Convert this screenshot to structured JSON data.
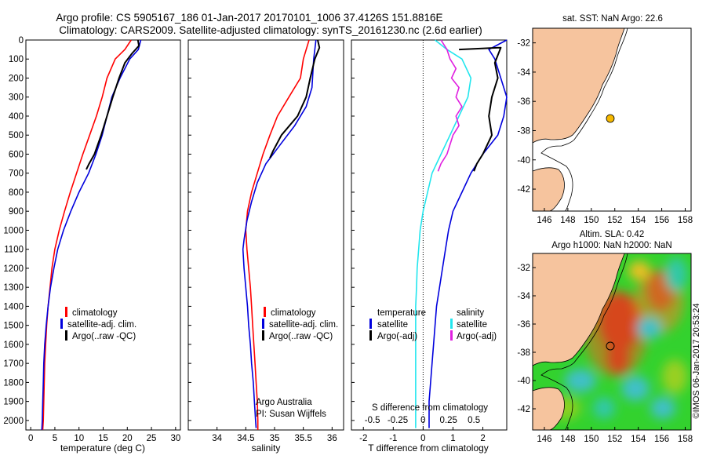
{
  "title": {
    "line1": "Argo profile: CS 5905167_186 01-Jan-2017 20170101_1006 37.4126S 151.8816E",
    "line2": "Climatology: CARS2009. Satellite-adjusted climatology: synTS_20161230.nc (2.6d earlier)"
  },
  "colors": {
    "climatology": "#ff0000",
    "satellite": "#0000dd",
    "argo": "#000000",
    "cyan": "#22e6ee",
    "magenta": "#e020e0",
    "land": "#f6c49e",
    "dot": "#f5b800"
  },
  "y_ticks": [
    "0",
    "100",
    "200",
    "300",
    "400",
    "500",
    "600",
    "700",
    "800",
    "900",
    "1000",
    "1100",
    "1200",
    "1300",
    "1400",
    "1500",
    "1600",
    "1700",
    "1800",
    "1900",
    "2000"
  ],
  "chart_data": [
    {
      "type": "line",
      "id": "temperature",
      "xlabel": "temperature (deg C)",
      "xlim": [
        -1,
        31
      ],
      "ylim": [
        2050,
        0
      ],
      "x_ticks": [
        0,
        5,
        10,
        15,
        20,
        25,
        30
      ],
      "x_tick_labels": [
        "0",
        "5",
        "10",
        "15",
        "20",
        "25",
        "30"
      ],
      "legend": [
        "climatology",
        "satellite-adj. clim.",
        "Argo(..raw -QC)"
      ],
      "series": [
        {
          "name": "climatology",
          "color": "#ff0000",
          "points": [
            [
              20.8,
              0
            ],
            [
              19.5,
              50
            ],
            [
              17.5,
              100
            ],
            [
              15.8,
              200
            ],
            [
              14.8,
              300
            ],
            [
              13.6,
              400
            ],
            [
              12.2,
              500
            ],
            [
              10.8,
              600
            ],
            [
              9.5,
              700
            ],
            [
              8.2,
              800
            ],
            [
              7.0,
              900
            ],
            [
              5.9,
              1000
            ],
            [
              5.0,
              1100
            ],
            [
              4.4,
              1200
            ],
            [
              4.0,
              1300
            ],
            [
              3.6,
              1400
            ],
            [
              3.3,
              1500
            ],
            [
              3.1,
              1600
            ],
            [
              2.9,
              1700
            ],
            [
              2.8,
              1800
            ],
            [
              2.7,
              1900
            ],
            [
              2.6,
              2000
            ],
            [
              2.5,
              2050
            ]
          ]
        },
        {
          "name": "satellite-adj. clim.",
          "color": "#0000dd",
          "points": [
            [
              22.8,
              0
            ],
            [
              22.3,
              50
            ],
            [
              20.5,
              100
            ],
            [
              18.5,
              200
            ],
            [
              16.8,
              300
            ],
            [
              15.8,
              400
            ],
            [
              14.8,
              500
            ],
            [
              13.5,
              600
            ],
            [
              12.0,
              700
            ],
            [
              10.0,
              800
            ],
            [
              8.3,
              900
            ],
            [
              6.8,
              1000
            ],
            [
              5.6,
              1100
            ],
            [
              4.8,
              1200
            ],
            [
              4.1,
              1300
            ],
            [
              3.6,
              1400
            ],
            [
              3.2,
              1500
            ],
            [
              2.9,
              1600
            ],
            [
              2.7,
              1700
            ],
            [
              2.6,
              1800
            ],
            [
              2.5,
              1900
            ],
            [
              2.4,
              2000
            ],
            [
              2.3,
              2050
            ]
          ]
        },
        {
          "name": "Argo(..raw -QC)",
          "color": "#000000",
          "points": [
            [
              22.2,
              0
            ],
            [
              22.4,
              30
            ],
            [
              21.0,
              70
            ],
            [
              19.5,
              120
            ],
            [
              18.3,
              200
            ],
            [
              17.0,
              300
            ],
            [
              15.8,
              400
            ],
            [
              14.6,
              500
            ],
            [
              13.2,
              600
            ],
            [
              12.1,
              650
            ],
            [
              11.5,
              680
            ]
          ]
        }
      ]
    },
    {
      "type": "line",
      "id": "salinity",
      "xlabel": "salinity",
      "xlim": [
        33.5,
        36.2
      ],
      "ylim": [
        2050,
        0
      ],
      "x_ticks": [
        34,
        34.5,
        35,
        35.5,
        36
      ],
      "x_tick_labels": [
        "34",
        "34.5",
        "35",
        "35.5",
        "36"
      ],
      "legend": [
        "climatology",
        "satellite-adj. clim.",
        "Argo(..raw -QC)"
      ],
      "annotations": [
        "Argo Australia",
        "PI: Susan Wijffels"
      ],
      "series": [
        {
          "name": "climatology",
          "color": "#ff0000",
          "points": [
            [
              35.6,
              0
            ],
            [
              35.5,
              100
            ],
            [
              35.45,
              200
            ],
            [
              35.25,
              300
            ],
            [
              35.05,
              400
            ],
            [
              34.92,
              500
            ],
            [
              34.8,
              600
            ],
            [
              34.7,
              700
            ],
            [
              34.6,
              800
            ],
            [
              34.53,
              900
            ],
            [
              34.5,
              1000
            ],
            [
              34.52,
              1100
            ],
            [
              34.55,
              1200
            ],
            [
              34.58,
              1300
            ],
            [
              34.6,
              1400
            ],
            [
              34.62,
              1500
            ],
            [
              34.64,
              1600
            ],
            [
              34.66,
              1700
            ],
            [
              34.68,
              1800
            ],
            [
              34.7,
              1900
            ],
            [
              34.71,
              2000
            ],
            [
              34.71,
              2050
            ]
          ]
        },
        {
          "name": "satellite-adj. clim.",
          "color": "#0000dd",
          "points": [
            [
              35.72,
              0
            ],
            [
              35.68,
              100
            ],
            [
              35.65,
              250
            ],
            [
              35.55,
              350
            ],
            [
              35.35,
              450
            ],
            [
              35.1,
              550
            ],
            [
              34.85,
              650
            ],
            [
              34.7,
              750
            ],
            [
              34.6,
              850
            ],
            [
              34.52,
              950
            ],
            [
              34.47,
              1050
            ],
            [
              34.45,
              1100
            ],
            [
              34.47,
              1200
            ],
            [
              34.5,
              1300
            ],
            [
              34.53,
              1400
            ],
            [
              34.55,
              1500
            ],
            [
              34.58,
              1600
            ],
            [
              34.6,
              1700
            ],
            [
              34.63,
              1800
            ],
            [
              34.65,
              1900
            ],
            [
              34.67,
              2000
            ],
            [
              34.68,
              2040
            ]
          ]
        },
        {
          "name": "Argo(..raw -QC)",
          "color": "#000000",
          "points": [
            [
              35.75,
              0
            ],
            [
              35.78,
              40
            ],
            [
              35.7,
              100
            ],
            [
              35.62,
              200
            ],
            [
              35.55,
              300
            ],
            [
              35.4,
              400
            ],
            [
              35.12,
              500
            ],
            [
              34.98,
              580
            ],
            [
              34.92,
              620
            ]
          ]
        }
      ]
    },
    {
      "type": "line",
      "id": "difference",
      "xlabel": "T difference from climatology",
      "xlabel2": "S difference from climatology",
      "xlim": [
        -2.4,
        2.8
      ],
      "ylim": [
        2050,
        0
      ],
      "x_ticks": [
        -2,
        -1,
        0,
        1,
        2
      ],
      "x_tick_labels": [
        "-2",
        "-1",
        "0",
        "1",
        "2"
      ],
      "s_ticks": [
        -0.5,
        -0.25,
        0,
        0.25,
        0.5
      ],
      "s_tick_labels": [
        "-0.5",
        "-0.25",
        "0",
        "0.25",
        "0.5"
      ],
      "legend_t": [
        "temperature",
        "satellite",
        "Argo(-adj)"
      ],
      "legend_s": [
        "salinity",
        "satellite",
        "Argo(-adj)"
      ],
      "series": [
        {
          "name": "satellite",
          "color": "#0000dd",
          "points": [
            [
              2.8,
              0
            ],
            [
              2.2,
              50
            ],
            [
              2.4,
              100
            ],
            [
              2.6,
              200
            ],
            [
              2.8,
              300
            ],
            [
              2.7,
              400
            ],
            [
              2.5,
              500
            ],
            [
              2.0,
              600
            ],
            [
              1.6,
              700
            ],
            [
              1.3,
              800
            ],
            [
              1.0,
              900
            ],
            [
              0.85,
              1000
            ],
            [
              0.75,
              1100
            ],
            [
              0.65,
              1200
            ],
            [
              0.55,
              1300
            ],
            [
              0.45,
              1400
            ],
            [
              0.4,
              1500
            ],
            [
              0.35,
              1600
            ],
            [
              0.3,
              1700
            ],
            [
              0.25,
              1800
            ],
            [
              0.2,
              1900
            ],
            [
              0.2,
              2000
            ],
            [
              0.2,
              2040
            ]
          ]
        },
        {
          "name": "Argo(-adj)",
          "color": "#000000",
          "points": [
            [
              1.2,
              50
            ],
            [
              2.6,
              40
            ],
            [
              2.4,
              120
            ],
            [
              2.5,
              200
            ],
            [
              2.3,
              300
            ],
            [
              2.2,
              400
            ],
            [
              2.3,
              500
            ],
            [
              2.0,
              600
            ],
            [
              1.8,
              650
            ],
            [
              1.7,
              690
            ]
          ]
        },
        {
          "name": "satellite",
          "color": "#22e6ee",
          "points": [
            [
              0.4,
              0
            ],
            [
              0.8,
              50
            ],
            [
              1.3,
              100
            ],
            [
              1.6,
              200
            ],
            [
              1.5,
              300
            ],
            [
              1.2,
              400
            ],
            [
              0.9,
              500
            ],
            [
              0.6,
              600
            ],
            [
              0.3,
              700
            ],
            [
              0.15,
              800
            ],
            [
              0.0,
              900
            ],
            [
              -0.1,
              1000
            ],
            [
              -0.15,
              1100
            ],
            [
              -0.2,
              1200
            ],
            [
              -0.22,
              1300
            ],
            [
              -0.25,
              1400
            ],
            [
              -0.25,
              1500
            ],
            [
              -0.25,
              1600
            ],
            [
              -0.25,
              1700
            ],
            [
              -0.25,
              1800
            ],
            [
              -0.25,
              1900
            ],
            [
              -0.25,
              2000
            ],
            [
              -0.25,
              2040
            ]
          ]
        },
        {
          "name": "Argo(-adj)",
          "color": "#e020e0",
          "points": [
            [
              0.6,
              0
            ],
            [
              0.8,
              50
            ],
            [
              0.9,
              100
            ],
            [
              1.1,
              150
            ],
            [
              0.95,
              200
            ],
            [
              1.2,
              250
            ],
            [
              1.1,
              300
            ],
            [
              1.3,
              350
            ],
            [
              1.1,
              400
            ],
            [
              1.2,
              450
            ],
            [
              1.0,
              500
            ],
            [
              0.8,
              600
            ],
            [
              0.6,
              650
            ],
            [
              0.5,
              690
            ]
          ]
        }
      ]
    },
    {
      "type": "map",
      "id": "sst",
      "title": "sat. SST: NaN Argo: 22.6",
      "lon_ticks": [
        "146",
        "148",
        "150",
        "152",
        "154",
        "156",
        "158"
      ],
      "lat_ticks": [
        "-32",
        "-34",
        "-36",
        "-38",
        "-40",
        "-42"
      ],
      "lon_range": [
        145,
        158.5
      ],
      "lat_range": [
        -31,
        -43.5
      ],
      "argo_position": [
        151.88,
        -37.41
      ]
    },
    {
      "type": "map",
      "id": "sla",
      "title1": "Altim. SLA: 0.42",
      "title2": "Argo h1000: NaN h2000: NaN",
      "lon_ticks": [
        "146",
        "148",
        "150",
        "152",
        "154",
        "156",
        "158"
      ],
      "lat_ticks": [
        "-32",
        "-34",
        "-36",
        "-38",
        "-40",
        "-42"
      ],
      "lon_range": [
        145,
        158.5
      ],
      "lat_range": [
        -31,
        -43.5
      ],
      "argo_position": [
        151.88,
        -37.41
      ]
    }
  ],
  "watermark": "©IMOS 06-Jan-2017 20:53:24"
}
